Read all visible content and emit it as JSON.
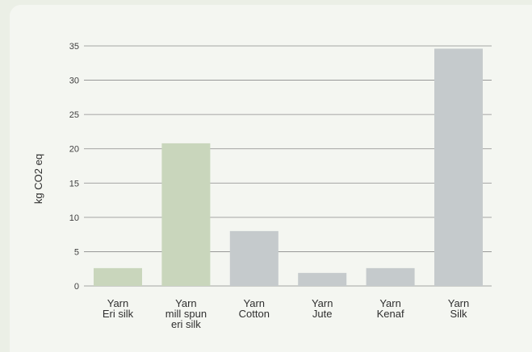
{
  "chart_data": {
    "type": "bar",
    "title": "",
    "xlabel": "",
    "ylabel": "kg CO2 eq",
    "ylim": [
      0,
      35
    ],
    "yticks": [
      0,
      5,
      10,
      15,
      20,
      25,
      30,
      35
    ],
    "grid": true,
    "categories": [
      [
        "Yarn",
        "Eri silk"
      ],
      [
        "Yarn",
        "mill spun",
        "eri silk"
      ],
      [
        "Yarn",
        "Cotton"
      ],
      [
        "Yarn",
        "Jute"
      ],
      [
        "Yarn",
        "Kenaf"
      ],
      [
        "Yarn",
        "Silk"
      ]
    ],
    "values": [
      2.6,
      20.8,
      8.0,
      1.9,
      2.6,
      34.6
    ],
    "colors": [
      "#c9d6bc",
      "#c9d6bc",
      "#c5cacc",
      "#c5cacc",
      "#c5cacc",
      "#c5cacc"
    ],
    "grid_color": "#8a8a8a"
  }
}
